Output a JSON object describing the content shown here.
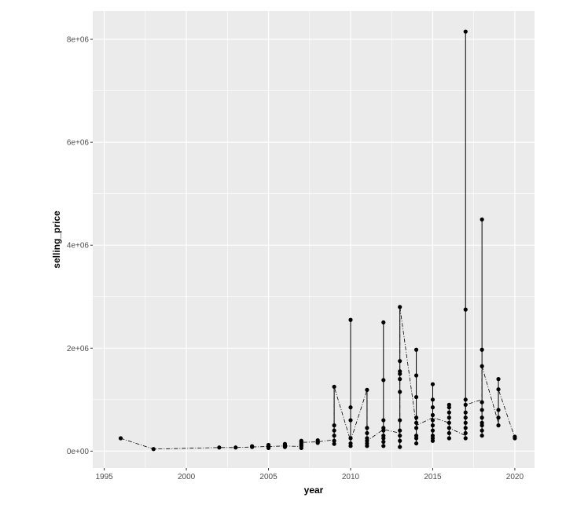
{
  "chart_data": {
    "type": "scatter",
    "title": "",
    "xlabel": "year",
    "ylabel": "selling_price",
    "xlim": [
      1994.3,
      2021.2
    ],
    "ylim": [
      -330000,
      8550000
    ],
    "x_ticks": [
      1995,
      2000,
      2005,
      2010,
      2015,
      2020
    ],
    "x_tick_labels": [
      "1995",
      "2000",
      "2005",
      "2010",
      "2015",
      "2020"
    ],
    "y_ticks": [
      0,
      2000000,
      4000000,
      6000000,
      8000000
    ],
    "y_tick_labels": [
      "0e+00",
      "2e+06",
      "4e+06",
      "6e+06",
      "8e+06"
    ],
    "grid": true,
    "legend": "none",
    "colors": {
      "panel": "#ebebeb",
      "grid": "#ffffff",
      "points": "#000000"
    },
    "points": [
      {
        "year": 1996,
        "values": [
          250000
        ]
      },
      {
        "year": 1998,
        "values": [
          40000
        ]
      },
      {
        "year": 2002,
        "values": [
          70000
        ]
      },
      {
        "year": 2003,
        "values": [
          70000
        ]
      },
      {
        "year": 2004,
        "values": [
          80000,
          95000
        ]
      },
      {
        "year": 2005,
        "values": [
          60000,
          80000,
          100000,
          120000
        ]
      },
      {
        "year": 2006,
        "values": [
          80000,
          100000,
          120000,
          140000
        ]
      },
      {
        "year": 2007,
        "values": [
          60000,
          100000,
          120000,
          150000,
          180000,
          200000
        ]
      },
      {
        "year": 2008,
        "values": [
          160000,
          180000,
          210000
        ]
      },
      {
        "year": 2009,
        "values": [
          140000,
          200000,
          300000,
          400000,
          500000,
          1250000
        ]
      },
      {
        "year": 2010,
        "values": [
          100000,
          150000,
          250000,
          600000,
          850000,
          2550000
        ]
      },
      {
        "year": 2011,
        "values": [
          100000,
          150000,
          200000,
          250000,
          350000,
          450000,
          1190000
        ]
      },
      {
        "year": 2012,
        "values": [
          100000,
          180000,
          250000,
          300000,
          400000,
          450000,
          600000,
          1380000,
          2500000
        ]
      },
      {
        "year": 2013,
        "values": [
          80000,
          200000,
          300000,
          400000,
          600000,
          1150000,
          1400000,
          1500000,
          1550000,
          1750000,
          2800000
        ]
      },
      {
        "year": 2014,
        "values": [
          150000,
          250000,
          300000,
          450000,
          550000,
          650000,
          1050000,
          1470000,
          1970000
        ]
      },
      {
        "year": 2015,
        "values": [
          200000,
          250000,
          300000,
          400000,
          500000,
          600000,
          700000,
          850000,
          1000000,
          1300000
        ]
      },
      {
        "year": 2016,
        "values": [
          250000,
          350000,
          450000,
          550000,
          650000,
          750000,
          850000,
          900000
        ]
      },
      {
        "year": 2017,
        "values": [
          250000,
          350000,
          450000,
          550000,
          650000,
          750000,
          900000,
          1000000,
          2750000,
          8150000
        ]
      },
      {
        "year": 2018,
        "values": [
          300000,
          400000,
          500000,
          550000,
          650000,
          800000,
          950000,
          1650000,
          1970000,
          4500000
        ]
      },
      {
        "year": 2019,
        "values": [
          500000,
          650000,
          800000,
          1200000,
          1400000
        ]
      },
      {
        "year": 2020,
        "values": [
          250000,
          280000
        ]
      }
    ],
    "dashed_line": {
      "x": [
        1996,
        1998,
        2002,
        2003,
        2004,
        2005,
        2006,
        2007,
        2007,
        2008,
        2009,
        2009,
        2010,
        2011,
        2011,
        2012,
        2013,
        2013,
        2014,
        2015,
        2016,
        2016,
        2017,
        2017,
        2018,
        2018,
        2019,
        2019,
        2020
      ],
      "y": [
        250000,
        40000,
        70000,
        70000,
        80000,
        90000,
        100000,
        90000,
        170000,
        180000,
        220000,
        1250000,
        200000,
        1190000,
        200000,
        420000,
        350000,
        2800000,
        500000,
        650000,
        550000,
        450000,
        300000,
        900000,
        1000000,
        1650000,
        550000,
        1200000,
        260000
      ]
    }
  }
}
